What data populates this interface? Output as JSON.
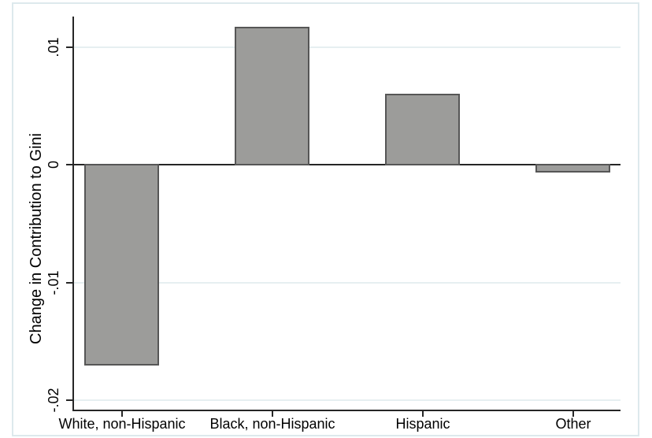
{
  "chart_data": {
    "type": "bar",
    "title": "",
    "xlabel": "",
    "ylabel": "Change in Contribution to Gini",
    "categories": [
      "White, non-Hispanic",
      "Black, non-Hispanic",
      "Hispanic",
      "Other"
    ],
    "values": [
      -0.017,
      0.0117,
      0.006,
      -0.0006
    ],
    "yticks": [
      0.01,
      0,
      -0.01,
      -0.02
    ],
    "ytick_labels": [
      ".01",
      "0",
      "-.01",
      "-.02"
    ],
    "ylim": [
      -0.0209,
      0.0126
    ],
    "grid": true,
    "legend": "none",
    "colors": {
      "background": "#ffffff",
      "bar_fill": "#9c9c9a",
      "bar_border": "#565656",
      "axis": "#262626",
      "grid": "#e6eff1",
      "frame": "#dde9ed",
      "text": "#000000"
    }
  }
}
